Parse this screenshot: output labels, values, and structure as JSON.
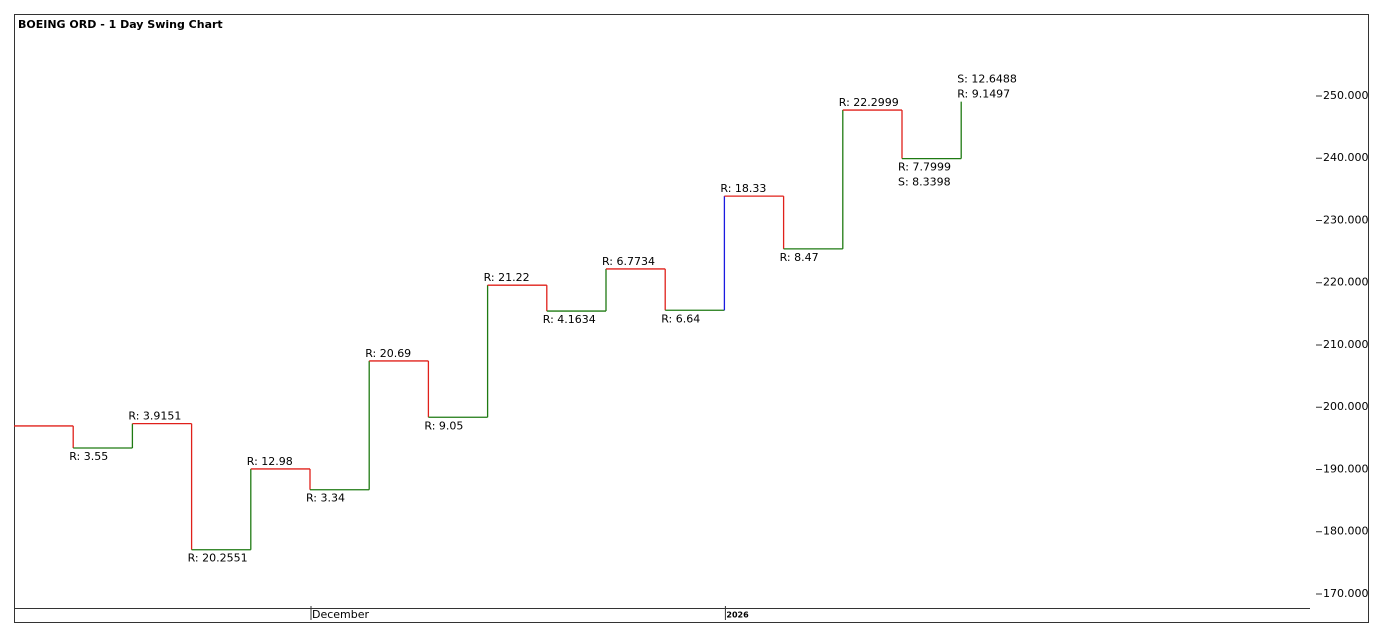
{
  "chart_data": {
    "type": "swing",
    "title": "BOEING ORD - 1 Day Swing Chart",
    "swings": [
      {
        "level": 197.0,
        "color": "#e0201a",
        "leg_color": "#e0201a"
      },
      {
        "level": 193.45,
        "color": "#1e7a12",
        "leg_color": "#1e7a12",
        "labels": [
          "R: 3.55"
        ]
      },
      {
        "level": 197.365,
        "color": "#e0201a",
        "leg_color": "#e0201a",
        "labels": [
          "R: 3.9151"
        ]
      },
      {
        "level": 177.11,
        "color": "#1e7a12",
        "leg_color": "#1e7a12",
        "labels": [
          "R: 20.2551"
        ]
      },
      {
        "level": 190.09,
        "color": "#e0201a",
        "leg_color": "#e0201a",
        "labels": [
          "R: 12.98"
        ]
      },
      {
        "level": 186.75,
        "color": "#1e7a12",
        "leg_color": "#1e7a12",
        "labels": [
          "R: 3.34"
        ]
      },
      {
        "level": 207.44,
        "color": "#e0201a",
        "leg_color": "#e0201a",
        "labels": [
          "R: 20.69"
        ]
      },
      {
        "level": 198.39,
        "color": "#1e7a12",
        "leg_color": "#1e7a12",
        "labels": [
          "R: 9.05"
        ]
      },
      {
        "level": 219.61,
        "color": "#e0201a",
        "leg_color": "#e0201a",
        "labels": [
          "R: 21.22"
        ]
      },
      {
        "level": 215.45,
        "color": "#1e7a12",
        "leg_color": "#1e7a12",
        "labels": [
          "R: 4.1634"
        ]
      },
      {
        "level": 222.22,
        "color": "#e0201a",
        "leg_color": "#e0201a",
        "labels": [
          "R: 6.7734"
        ]
      },
      {
        "level": 215.58,
        "color": "#1e7a12",
        "leg_color": "#1a1ae0",
        "labels": [
          "R: 6.64"
        ]
      },
      {
        "level": 233.91,
        "color": "#e0201a",
        "leg_color": "#e0201a",
        "labels": [
          "R: 18.33"
        ]
      },
      {
        "level": 225.44,
        "color": "#1e7a12",
        "leg_color": "#1e7a12",
        "labels": [
          "R: 8.47"
        ]
      },
      {
        "level": 247.74,
        "color": "#e0201a",
        "leg_color": "#e0201a",
        "labels": [
          "R: 22.2999"
        ]
      },
      {
        "level": 239.94,
        "color": "#1e7a12",
        "leg_color": "#1e7a12",
        "labels": [
          "R: 7.7999",
          "S: 8.3398"
        ]
      },
      {
        "level": 249.09,
        "color": "#1e7a12",
        "leg_color": "#1e7a12",
        "labels": [
          "S: 12.6488",
          "R: 9.1497"
        ]
      }
    ],
    "x_markers": [
      {
        "label": "December",
        "at_swing": 5
      },
      {
        "label": "2026",
        "at_swing": 12
      }
    ],
    "ylim": [
      167.75,
      263.17
    ],
    "yticks": [
      {
        "value": 170,
        "label": "170.000"
      },
      {
        "value": 180,
        "label": "180.000"
      },
      {
        "value": 190,
        "label": "190.000"
      },
      {
        "value": 200,
        "label": "200.000"
      },
      {
        "value": 210,
        "label": "210.000"
      },
      {
        "value": 220,
        "label": "220.000"
      },
      {
        "value": 230,
        "label": "230.000"
      },
      {
        "value": 240,
        "label": "240.000"
      },
      {
        "value": 250,
        "label": "250.000"
      }
    ]
  }
}
